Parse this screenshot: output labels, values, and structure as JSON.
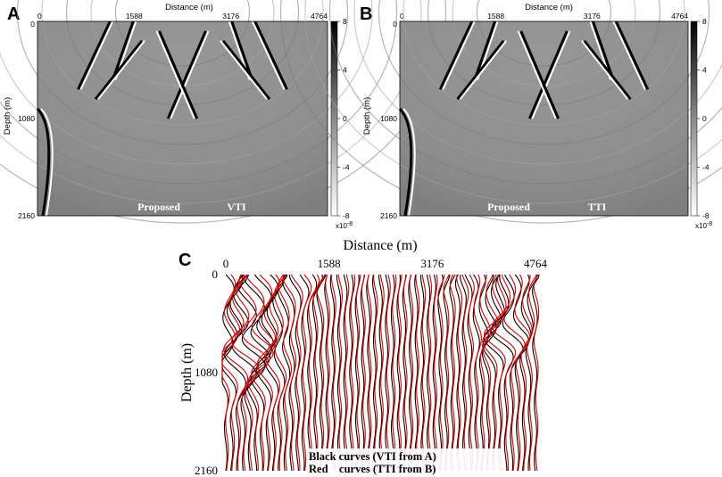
{
  "panels": [
    {
      "letter": "A",
      "x_axis_title": "Distance (m)",
      "y_axis_title": "Depth (m)",
      "x_ticks": [
        0,
        1588,
        3176,
        4764
      ],
      "y_ticks": [
        0,
        1080,
        2160
      ],
      "colorbar_ticks": [
        8,
        4,
        0,
        -4,
        -8
      ],
      "colorbar_exponent_base": "x10",
      "colorbar_exponent": "-8",
      "annotation_left": "Proposed",
      "annotation_right": "VTI",
      "rays": [
        [
          0.33,
          0.0,
          0.26,
          0.3
        ],
        [
          0.25,
          0.0,
          0.14,
          0.35
        ],
        [
          0.36,
          0.1,
          0.2,
          0.4
        ],
        [
          0.58,
          0.05,
          0.45,
          0.5
        ]
      ]
    },
    {
      "letter": "B",
      "x_axis_title": "Distance (m)",
      "y_axis_title": "Depth (m)",
      "x_ticks": [
        0,
        1588,
        3176,
        4764
      ],
      "y_ticks": [
        0,
        1080,
        2160
      ],
      "colorbar_ticks": [
        8,
        4,
        0,
        -4,
        -8
      ],
      "colorbar_exponent_base": "x10",
      "colorbar_exponent": "-8",
      "annotation_left": "Proposed",
      "annotation_right": "TTI",
      "rays": [
        [
          0.33,
          0.0,
          0.26,
          0.3
        ],
        [
          0.25,
          0.0,
          0.14,
          0.35
        ],
        [
          0.36,
          0.1,
          0.2,
          0.4
        ],
        [
          0.58,
          0.05,
          0.45,
          0.5
        ]
      ]
    }
  ],
  "panel_c": {
    "letter": "C",
    "x_axis_title": "Distance (m)",
    "y_axis_title": "Depth (m)",
    "x_ticks": [
      0,
      1588,
      3176,
      4764
    ],
    "y_ticks": [
      0,
      1080,
      2160
    ],
    "legend_black": "Black curves (VTI from A)",
    "legend_red": "Red    curves (TTI from B)"
  },
  "chart_data": {
    "type": "line",
    "title": "",
    "xlabel": "Distance (m)",
    "ylabel": "Depth (m)",
    "xlim": [
      0,
      4764
    ],
    "ylim": [
      2160,
      0
    ],
    "trace_count": 53,
    "trace_spacing_m": 90,
    "series": [
      {
        "name": "Black curves (VTI from A)",
        "color": "#000000"
      },
      {
        "name": "Red    curves (TTI from B)",
        "color": "#d40000"
      }
    ]
  },
  "colors": {
    "black_trace": "#000000",
    "red_trace": "#d40000",
    "image_background": "#8f8f8f"
  }
}
